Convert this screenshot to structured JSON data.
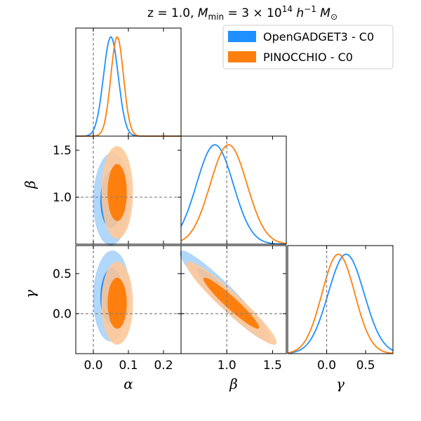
{
  "chart_data": {
    "type": "corner",
    "title": "z = 1.0, M_min = 3 × 10^14 h^−1 M_⊙",
    "title_parts": {
      "prefix": "z = 1.0, ",
      "M": "M",
      "sub": "min",
      "eq": " = 3 × 10",
      "exp": "14",
      "h": " h",
      "hexp": "−1",
      "msun": " M",
      "sun": "⊙"
    },
    "parameters": [
      {
        "name": "alpha",
        "label": "α",
        "range": [
          -0.05,
          0.25
        ],
        "ticks": [
          0.0,
          0.1,
          0.2
        ],
        "tick_labels": [
          "0.0",
          "0.1",
          "0.2"
        ],
        "truth": 0.0
      },
      {
        "name": "beta",
        "label": "β",
        "range": [
          0.5,
          1.65
        ],
        "ticks": [
          1.0,
          1.5
        ],
        "tick_labels": [
          "1.0",
          "1.5"
        ],
        "truth": 1.0
      },
      {
        "name": "gamma",
        "label": "γ",
        "range": [
          -0.5,
          0.85
        ],
        "ticks": [
          0.0,
          0.5
        ],
        "tick_labels": [
          "0.0",
          "0.5"
        ],
        "truth": 0.0
      }
    ],
    "beta_row_ticks": {
      "ticks": [
        1.0,
        1.5
      ],
      "tick_labels": [
        "1.0",
        "1.5"
      ]
    },
    "gamma_row_ticks": {
      "ticks": [
        0.0,
        0.5
      ],
      "tick_labels": [
        "0.0",
        "0.5"
      ]
    },
    "series": [
      {
        "name": "OpenGADGET3 - C0",
        "color": "#1e90ff",
        "color_inner": "#1e90ff",
        "color_outer": "#a9d3fb",
        "mean": [
          0.052,
          0.98,
          0.22
        ],
        "sigma": [
          0.021,
          0.2,
          0.23
        ],
        "corr": {
          "ab": 0.05,
          "ag": 0.05,
          "bg": -0.95
        },
        "marginal_peaks": [
          0.05,
          0.87,
          0.25
        ]
      },
      {
        "name": "PINOCCHIO - C0",
        "color": "#ff7f0e",
        "color_inner": "#ff7f0e",
        "color_outer": "#ffc999",
        "mean": [
          0.068,
          1.05,
          0.13
        ],
        "sigma": [
          0.018,
          0.2,
          0.21
        ],
        "corr": {
          "ab": 0.0,
          "ag": 0.0,
          "bg": -0.95
        },
        "marginal_peaks": [
          0.068,
          1.02,
          0.15
        ]
      }
    ],
    "legend": {
      "position": "top-right",
      "entries": [
        "OpenGADGET3 - C0",
        "PINOCCHIO - C0"
      ]
    },
    "truth_line_style": "dashed gray"
  }
}
